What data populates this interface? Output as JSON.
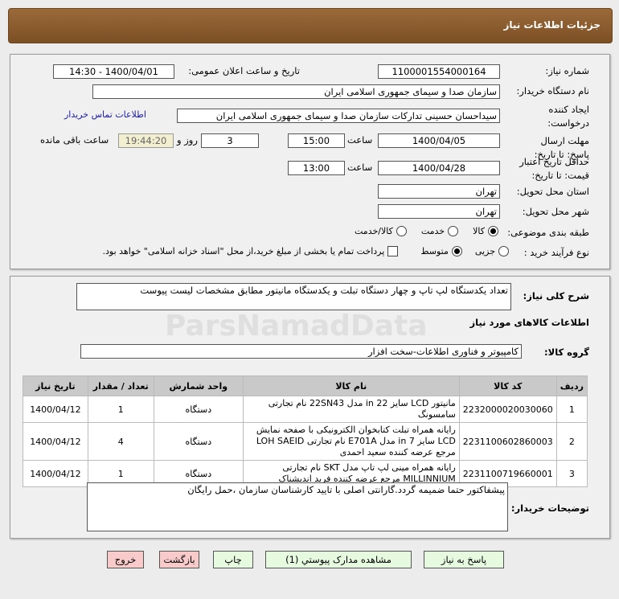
{
  "header": {
    "title": "جزئیات اطلاعات نیاز"
  },
  "form": {
    "need_number_label": "شماره نیاز:",
    "need_number": "1100001554000164",
    "announce_label": "تاریخ و ساعت اعلان عمومی:",
    "announce_value": "1400/04/01 - 14:30",
    "buyer_label": "نام دستگاه خریدار:",
    "buyer": "سازمان صدا و سیمای جمهوری اسلامی ایران",
    "creator_label": "ایجاد کننده درخواست:",
    "creator": "سیداحسان حسینی تدارکات سازمان صدا و سیمای جمهوری اسلامی ایران",
    "contact_link": "اطلاعات تماس خریدار",
    "deadline_label": "مهلت ارسال پاسخ: تا تاریخ:",
    "deadline_date": "1400/04/05",
    "time_label": "ساعت",
    "deadline_time": "15:00",
    "days": "3",
    "days_label": "روز و",
    "remaining": "19:44:20",
    "remaining_label": "ساعت باقی مانده",
    "validity_label": "حداقل تاریخ اعتبار قیمت: تا تاریخ:",
    "validity_date": "1400/04/28",
    "validity_time": "13:00",
    "province_label": "استان محل تحویل:",
    "province": "تهران",
    "city_label": "شهر محل تحویل:",
    "city": "تهران",
    "category_label": "طبقه بندی موضوعی:",
    "category_options": [
      "کالا",
      "خدمت",
      "کالا/خدمت"
    ],
    "category_selected": "کالا",
    "process_label": "نوع فرآیند خرید :",
    "process_options": [
      "جزیی",
      "متوسط"
    ],
    "process_selected": "متوسط",
    "payment_note": "پرداخت تمام یا بخشی از مبلغ خرید،از محل \"اسناد خزانه اسلامی\" خواهد بود."
  },
  "details": {
    "desc_label": "شرح کلی نیاز:",
    "desc": "تعداد یکدستگاه لپ تاپ و چهار دستگاه تبلت و یکدستگاه مانیتور مطابق مشخصات لیست پیوست",
    "goods_title": "اطلاعات کالاهای مورد نیاز",
    "group_label": "گروه کالا:",
    "group": "کامپیوتر و فناوری اطلاعات-سخت افزار",
    "columns": [
      "ردیف",
      "کد کالا",
      "نام کالا",
      "واحد شمارش",
      "تعداد / مقدار",
      "تاریخ نیاز"
    ],
    "rows": [
      {
        "idx": "1",
        "code": "2232000020030060",
        "name": "مانیتور LCD سایز 22 in مدل 22SN43 نام تجارتی سامسونگ",
        "unit": "دستگاه",
        "qty": "1",
        "date": "1400/04/12"
      },
      {
        "idx": "2",
        "code": "2231100602860003",
        "name": "رایانه همراه تبلت کتابخوان الکترونیکی با صفحه نمایش LCD سایز 7 in مدل E701A نام تجارتی LOH SAEID مرجع عرضه کننده سعید احمدی",
        "unit": "دستگاه",
        "qty": "4",
        "date": "1400/04/12"
      },
      {
        "idx": "3",
        "code": "2231100719660001",
        "name": "رایانه همراه مینی لپ تاپ مدل SKT نام تجارتی MILLINNIUM مرجع عرضه کننده فرید اندیشناک",
        "unit": "دستگاه",
        "qty": "1",
        "date": "1400/04/12"
      }
    ],
    "notes_label": "توضیحات خریدار:",
    "notes": "پیشفاکتور حتما ضمیمه گردد.گارانتی اصلی با تایید کارشناسان سازمان ،حمل رایگان"
  },
  "buttons": {
    "reply": "پاسخ به نیاز",
    "attachments": "مشاهده مدارک پیوستي (1)",
    "print": "چاپ",
    "back": "بازگشت",
    "exit": "خروج"
  },
  "watermark": {
    "text": "ParsNamadData"
  }
}
